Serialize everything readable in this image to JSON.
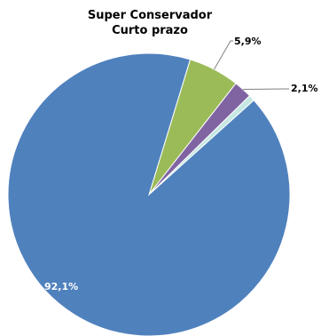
{
  "chart_data": {
    "type": "pie",
    "title": [
      "Super Conservador",
      "Curto prazo"
    ],
    "slices": [
      {
        "value": 92.1,
        "label": "92,1%",
        "color": "#4F81BD"
      },
      {
        "value": 5.9,
        "label": "5,9%",
        "color": "#9BBB59"
      },
      {
        "value": 2.1,
        "label": "2,1%",
        "color": "#8064A2"
      },
      {
        "value": 0.7,
        "label": "",
        "color": "#C6E7E2"
      }
    ],
    "start_slice_index": 1,
    "start_angle_deg": 73,
    "legend": "none"
  }
}
